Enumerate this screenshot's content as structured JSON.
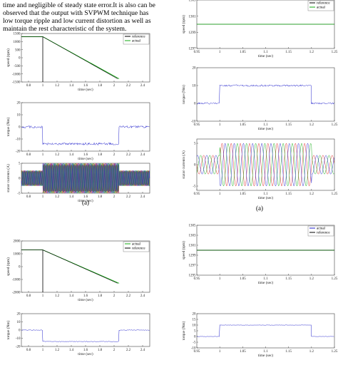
{
  "body_text": {
    "line1": "time and negligible of steady state error.It is also can be",
    "line2": "observed that the output with SVPWM technique has",
    "line3": "low torque ripple and low current distortion as well as",
    "line4": "maintain the rest characteristic of the system."
  },
  "captions": {
    "left_a": "(a)",
    "right_a": "(a)"
  },
  "chart_data": [
    {
      "id": "L1",
      "type": "line",
      "ylabel": "speed (rpm)",
      "xlabel": "time (sec)",
      "xlim": [
        0.7,
        2.5
      ],
      "ylim": [
        -1500,
        1500
      ],
      "xticks": [
        "0.8",
        "1",
        "1.2",
        "1.4",
        "1.6",
        "1.8",
        "2",
        "2.2",
        "2.4"
      ],
      "yticks": [
        "1500",
        "1000",
        "500",
        "0",
        "-500",
        "-1000",
        "-1500"
      ],
      "legend": [
        "reference",
        "actual"
      ],
      "series": [
        {
          "name": "reference",
          "x": [
            0.7,
            1.0,
            2.07
          ],
          "y": [
            1300,
            1300,
            -1300
          ]
        },
        {
          "name": "actual",
          "x": [
            0.7,
            1.0,
            2.05
          ],
          "y": [
            1300,
            1300,
            -1300
          ]
        }
      ]
    },
    {
      "id": "L2",
      "type": "line",
      "ylabel": "torque (Nm)",
      "xlabel": "time (sec)",
      "xlim": [
        0.7,
        2.5
      ],
      "ylim": [
        -20,
        20
      ],
      "xticks": [
        "0.8",
        "1",
        "1.2",
        "1.4",
        "1.6",
        "1.8",
        "2",
        "2.2",
        "2.4"
      ],
      "yticks": [
        "20",
        "10",
        "0",
        "-10",
        "-20"
      ],
      "series": [
        {
          "name": "torque",
          "x": [
            0.7,
            1.0,
            2.07,
            2.5
          ],
          "y": [
            0,
            -14,
            0,
            0
          ]
        }
      ]
    },
    {
      "id": "L3",
      "type": "line",
      "ylabel": "stator currents (A)",
      "xlabel": "time (sec)",
      "xlim": [
        0.7,
        2.5
      ],
      "ylim": [
        -5,
        5
      ],
      "xticks": [
        "0.8",
        "1",
        "1.2",
        "1.4",
        "1.6",
        "1.8",
        "2",
        "2.2",
        "2.4"
      ],
      "yticks": [
        "5",
        "0",
        "-5"
      ],
      "series": [
        {
          "name": "phase a"
        },
        {
          "name": "phase b"
        },
        {
          "name": "phase c"
        }
      ]
    },
    {
      "id": "L4",
      "type": "line",
      "ylabel": "speed (rpm)",
      "xlabel": "time (sec)",
      "xlim": [
        0.7,
        2.5
      ],
      "ylim": [
        -2000,
        2000
      ],
      "xticks": [
        "0.8",
        "1",
        "1.2",
        "1.4",
        "1.6",
        "1.8",
        "2",
        "2.2",
        "2.4"
      ],
      "yticks": [
        "2000",
        "1000",
        "0",
        "-1000",
        "-2000"
      ],
      "legend": [
        "actual",
        "reference"
      ],
      "series": [
        {
          "name": "actual",
          "x": [
            0.7,
            1.0,
            2.07
          ],
          "y": [
            1300,
            1300,
            -1300
          ]
        },
        {
          "name": "reference",
          "x": [
            0.7,
            1.0,
            2.05
          ],
          "y": [
            1300,
            1300,
            -1300
          ]
        }
      ]
    },
    {
      "id": "L5",
      "type": "line",
      "ylabel": "torque (Nm)",
      "xlabel": "time (sec)",
      "xlim": [
        0.7,
        2.5
      ],
      "ylim": [
        -20,
        20
      ],
      "xticks": [
        "0.8",
        "1",
        "1.2",
        "1.4",
        "1.6",
        "1.8",
        "2",
        "2.2",
        "2.4"
      ],
      "yticks": [
        "20",
        "10",
        "0",
        "-10",
        "-20"
      ],
      "series": [
        {
          "name": "torque",
          "x": [
            0.7,
            1.0,
            2.07,
            2.5
          ],
          "y": [
            0,
            -14,
            0,
            0
          ]
        }
      ]
    },
    {
      "id": "R1",
      "type": "line",
      "ylabel": "speed (rpm)",
      "xlabel": "time (sec)",
      "xlim": [
        0.95,
        1.25
      ],
      "ylim": [
        1297,
        1303
      ],
      "xticks": [
        "0.95",
        "1",
        "1.05",
        "1.1",
        "1.15",
        "1.2",
        "1.25"
      ],
      "yticks": [
        "1303",
        "1301",
        "1299",
        "1297"
      ],
      "legend": [
        "reference",
        "actual"
      ],
      "series": [
        {
          "name": "reference",
          "x": [
            0.95,
            1.25
          ],
          "y": [
            1300,
            1300
          ]
        },
        {
          "name": "actual",
          "x": [
            0.95,
            1.25
          ],
          "y": [
            1300,
            1300
          ]
        }
      ]
    },
    {
      "id": "R2",
      "type": "line",
      "ylabel": "torque (Nm)",
      "xlabel": "time (sec)",
      "xlim": [
        0.95,
        1.25
      ],
      "ylim": [
        -10,
        20
      ],
      "xticks": [
        "0.95",
        "1",
        "1.05",
        "1.1",
        "1.15",
        "1.2",
        "1.25"
      ],
      "yticks": [
        "20",
        "10",
        "0",
        "-10"
      ],
      "series": [
        {
          "name": "torque",
          "x": [
            0.95,
            1.0,
            1.2,
            1.25
          ],
          "y": [
            0,
            10,
            0,
            0
          ]
        }
      ]
    },
    {
      "id": "R3",
      "type": "line",
      "ylabel": "stator currents (A)",
      "xlabel": "time (sec)",
      "xlim": [
        0.95,
        1.25
      ],
      "ylim": [
        -6,
        6
      ],
      "xticks": [
        "0.95",
        "1",
        "1.05",
        "1.1",
        "1.15",
        "1.2",
        "1.25"
      ],
      "yticks": [
        "5",
        "0",
        "-5"
      ],
      "series": [
        {
          "name": "phase a"
        },
        {
          "name": "phase b"
        },
        {
          "name": "phase c"
        }
      ]
    },
    {
      "id": "R4",
      "type": "line",
      "ylabel": "speed (rpm)",
      "xlabel": "time (sec)",
      "xlim": [
        0.95,
        1.25
      ],
      "ylim": [
        1295,
        1305
      ],
      "xticks": [
        "0.95",
        "1",
        "1.05",
        "1.1",
        "1.15",
        "1.2",
        "1.25"
      ],
      "yticks": [
        "1305",
        "1303",
        "1301",
        "1299",
        "1297",
        "1295"
      ],
      "legend": [
        "actual",
        "reference"
      ],
      "series": [
        {
          "name": "actual",
          "x": [
            0.95,
            1.25
          ],
          "y": [
            1300,
            1300
          ]
        },
        {
          "name": "reference",
          "x": [
            0.95,
            1.25
          ],
          "y": [
            1300,
            1300
          ]
        }
      ]
    },
    {
      "id": "R5",
      "type": "line",
      "ylabel": "torque (Nm)",
      "xlabel": "time (sec)",
      "xlim": [
        0.95,
        1.25
      ],
      "ylim": [
        -10,
        20
      ],
      "xticks": [
        "0.95",
        "1",
        "1.05",
        "1.1",
        "1.15",
        "1.2",
        "1.25"
      ],
      "yticks": [
        "20",
        "15",
        "10",
        "5",
        "0",
        "-5",
        "-10"
      ],
      "series": [
        {
          "name": "torque",
          "x": [
            0.95,
            1.0,
            1.2,
            1.25
          ],
          "y": [
            0,
            10,
            0,
            0
          ]
        }
      ]
    }
  ]
}
